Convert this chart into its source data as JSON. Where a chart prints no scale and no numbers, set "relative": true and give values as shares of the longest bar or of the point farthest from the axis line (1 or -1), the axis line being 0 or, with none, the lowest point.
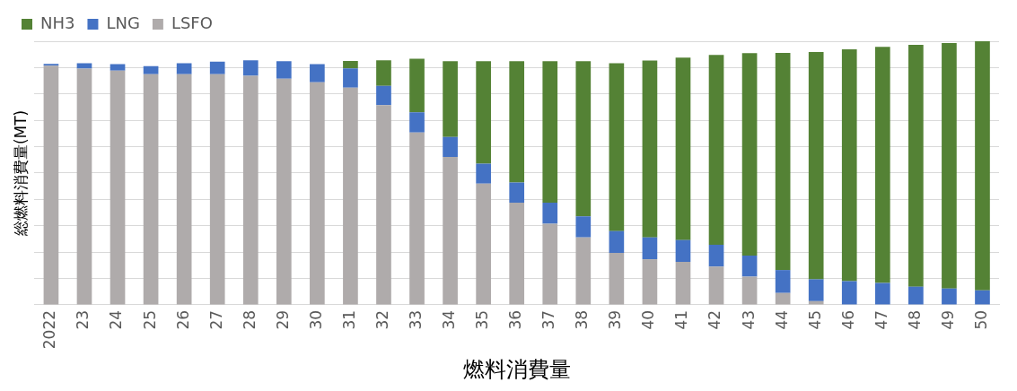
{
  "chart_data": {
    "type": "bar",
    "stacked": true,
    "relative": true,
    "grid": "y",
    "legend": "top left",
    "xlabel": "燃料消費量",
    "ylabel": "総燃料消費量(MT)",
    "categories": [
      "2022",
      "23",
      "24",
      "25",
      "26",
      "27",
      "28",
      "29",
      "30",
      "31",
      "32",
      "33",
      "34",
      "35",
      "36",
      "37",
      "38",
      "39",
      "40",
      "41",
      "42",
      "43",
      "44",
      "45",
      "46",
      "47",
      "48",
      "49",
      "50"
    ],
    "series": [
      {
        "name": "LSFO",
        "color": "#afabab",
        "values": [
          0.907,
          0.896,
          0.889,
          0.875,
          0.875,
          0.875,
          0.869,
          0.858,
          0.844,
          0.824,
          0.758,
          0.654,
          0.561,
          0.46,
          0.388,
          0.308,
          0.256,
          0.197,
          0.173,
          0.163,
          0.145,
          0.107,
          0.045,
          0.014,
          0,
          0,
          0,
          0,
          0
        ]
      },
      {
        "name": "LNG",
        "color": "#4472c4",
        "values": [
          0.007,
          0.021,
          0.024,
          0.031,
          0.042,
          0.048,
          0.059,
          0.066,
          0.069,
          0.073,
          0.073,
          0.076,
          0.076,
          0.076,
          0.076,
          0.08,
          0.08,
          0.083,
          0.083,
          0.083,
          0.083,
          0.08,
          0.087,
          0.083,
          0.09,
          0.083,
          0.069,
          0.062,
          0.055
        ]
      },
      {
        "name": "NH3",
        "color": "#548235",
        "values": [
          0,
          0,
          0,
          0,
          0,
          0,
          0,
          0,
          0,
          0.028,
          0.097,
          0.204,
          0.287,
          0.388,
          0.46,
          0.536,
          0.588,
          0.637,
          0.671,
          0.692,
          0.72,
          0.768,
          0.824,
          0.862,
          0.879,
          0.896,
          0.917,
          0.931,
          0.945
        ]
      }
    ]
  }
}
